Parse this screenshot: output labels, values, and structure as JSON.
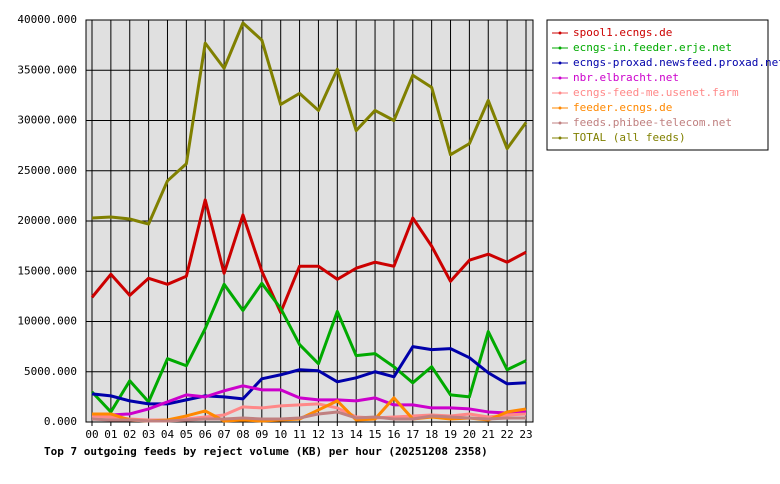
{
  "chart_data": {
    "type": "line",
    "title": "Top 7 outgoing feeds by reject volume (KB) per hour (20251208 2358)",
    "categories": [
      "00",
      "01",
      "02",
      "03",
      "04",
      "05",
      "06",
      "07",
      "08",
      "09",
      "10",
      "11",
      "12",
      "13",
      "14",
      "15",
      "16",
      "17",
      "18",
      "19",
      "20",
      "21",
      "22",
      "23"
    ],
    "series": [
      {
        "name": "spool1.ecngs.de",
        "color": "#cc0000",
        "values": [
          12400,
          14700,
          12600,
          14300,
          13700,
          14500,
          22100,
          14800,
          20600,
          15000,
          10900,
          15500,
          15500,
          14200,
          15300,
          15900,
          15500,
          20300,
          17500,
          14000,
          16100,
          16700,
          15900,
          16900
        ]
      },
      {
        "name": "ecngs-in.feeder.erje.net",
        "color": "#00aa00",
        "values": [
          3000,
          1000,
          4100,
          2000,
          6300,
          5600,
          9300,
          13700,
          11100,
          13800,
          11300,
          7700,
          5800,
          11000,
          6600,
          6800,
          5500,
          3900,
          5500,
          2700,
          2500,
          9000,
          5200,
          6100
        ]
      },
      {
        "name": "ecngs-proxad.newsfeed.proxad.net",
        "color": "#0000aa",
        "values": [
          2800,
          2600,
          2100,
          1800,
          1800,
          2200,
          2600,
          2500,
          2300,
          4300,
          4700,
          5200,
          5100,
          4000,
          4400,
          5000,
          4500,
          7500,
          7200,
          7300,
          6400,
          4900,
          3800,
          3900
        ]
      },
      {
        "name": "nbr.elbracht.net",
        "color": "#cc00cc",
        "values": [
          700,
          700,
          800,
          1300,
          2000,
          2700,
          2500,
          3100,
          3600,
          3200,
          3200,
          2400,
          2200,
          2200,
          2100,
          2400,
          1700,
          1700,
          1400,
          1400,
          1300,
          1000,
          900,
          1000
        ]
      },
      {
        "name": "ecngs-feed-me.usenet.farm",
        "color": "#ff8888",
        "values": [
          600,
          500,
          300,
          200,
          200,
          300,
          500,
          700,
          1500,
          1400,
          1600,
          1700,
          1800,
          1400,
          500,
          400,
          500,
          600,
          700,
          600,
          800,
          500,
          700,
          800
        ]
      },
      {
        "name": "feeder.ecngs.de",
        "color": "#ff8800",
        "values": [
          800,
          800,
          200,
          100,
          200,
          600,
          1100,
          100,
          200,
          100,
          200,
          300,
          1200,
          2100,
          200,
          300,
          2400,
          300,
          500,
          300,
          400,
          200,
          1000,
          1300
        ]
      },
      {
        "name": "feeds.phibee-telecom.net",
        "color": "#c08080",
        "values": [
          300,
          200,
          200,
          100,
          100,
          200,
          300,
          300,
          400,
          300,
          300,
          400,
          800,
          1000,
          400,
          500,
          300,
          300,
          600,
          500,
          400,
          300,
          400,
          400
        ]
      },
      {
        "name": "TOTAL (all feeds)",
        "color": "#808000",
        "values": [
          20300,
          20400,
          20200,
          19700,
          24000,
          25700,
          37700,
          35200,
          39700,
          38000,
          31600,
          32700,
          31000,
          35100,
          29000,
          31000,
          30000,
          34500,
          33300,
          26600,
          27700,
          32000,
          27200,
          29800
        ]
      }
    ],
    "ylim": [
      0,
      40000
    ],
    "yticks": [
      {
        "value": 0,
        "label": "0.000"
      },
      {
        "value": 5000,
        "label": "5000.000"
      },
      {
        "value": 10000,
        "label": "10000.000"
      },
      {
        "value": 15000,
        "label": "15000.000"
      },
      {
        "value": 20000,
        "label": "20000.000"
      },
      {
        "value": 25000,
        "label": "25000.000"
      },
      {
        "value": 30000,
        "label": "30000.000"
      },
      {
        "value": 35000,
        "label": "35000.000"
      },
      {
        "value": 40000,
        "label": "40000.000"
      }
    ],
    "grid": true
  }
}
